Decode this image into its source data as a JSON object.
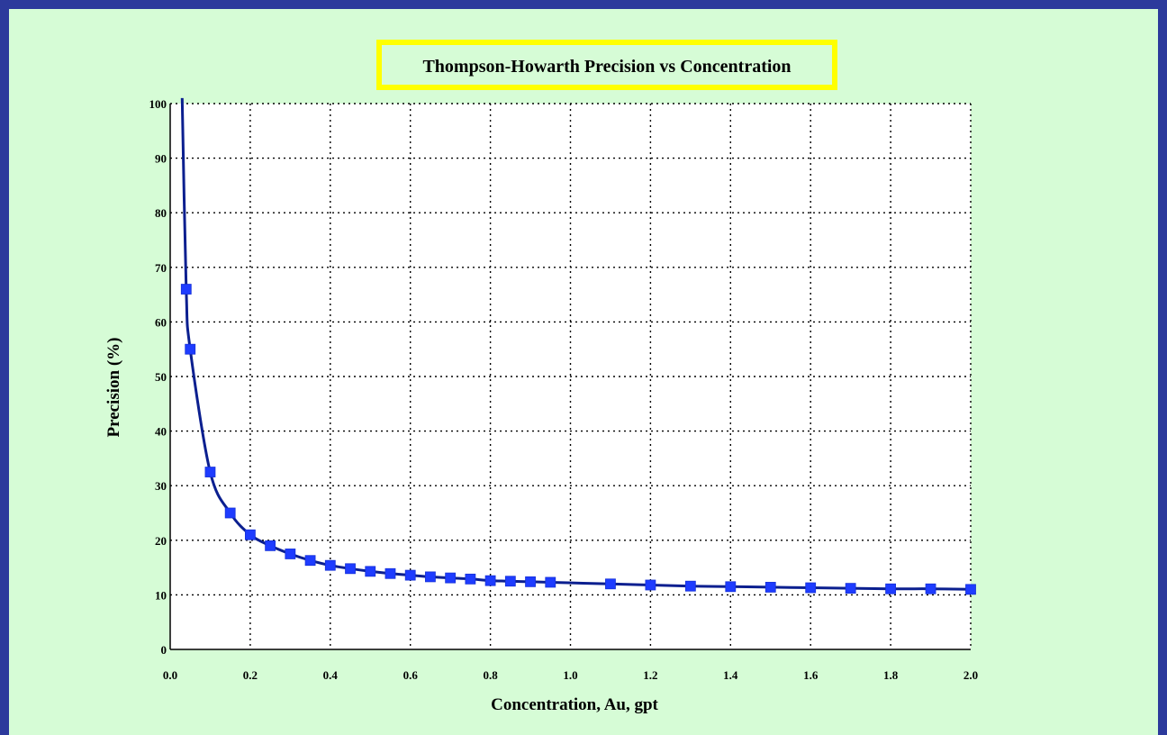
{
  "chart_data": {
    "type": "line",
    "title": "Thompson-Howarth Precision vs Concentration",
    "xlabel": "Concentration, Au, gpt",
    "ylabel": "Precision (%)",
    "xlim": [
      0,
      2.0
    ],
    "ylim": [
      0,
      100
    ],
    "xticks": [
      "0.0",
      "0.2",
      "0.4",
      "0.6",
      "0.8",
      "1.0",
      "1.2",
      "1.4",
      "1.6",
      "1.8",
      "2.0"
    ],
    "yticks": [
      "0",
      "10",
      "20",
      "30",
      "40",
      "50",
      "60",
      "70",
      "80",
      "90",
      "100"
    ],
    "grid": true,
    "legend": "none",
    "series": [
      {
        "x": [
          0.04,
          0.05,
          0.1,
          0.15,
          0.2,
          0.25,
          0.3,
          0.35,
          0.4,
          0.45,
          0.5,
          0.55,
          0.6,
          0.65,
          0.7,
          0.75,
          0.8,
          0.85,
          0.9,
          0.95,
          1.1,
          1.2,
          1.3,
          1.4,
          1.5,
          1.6,
          1.7,
          1.8,
          1.9,
          2.0
        ],
        "y": [
          66,
          55,
          32.5,
          25,
          21,
          19,
          17.5,
          16.3,
          15.4,
          14.8,
          14.3,
          13.9,
          13.6,
          13.3,
          13.1,
          12.9,
          12.6,
          12.5,
          12.4,
          12.3,
          12.0,
          11.8,
          11.6,
          11.5,
          11.4,
          11.3,
          11.2,
          11.1,
          11.1,
          11.0
        ],
        "curve_start": {
          "x": 0.03,
          "y": 101
        }
      }
    ],
    "colors": {
      "line": "#0b1f8f",
      "marker": "#1e3cff",
      "title_box": "#ffff00",
      "frame": "#d6fcd6",
      "background": "#2c3a9c"
    }
  }
}
